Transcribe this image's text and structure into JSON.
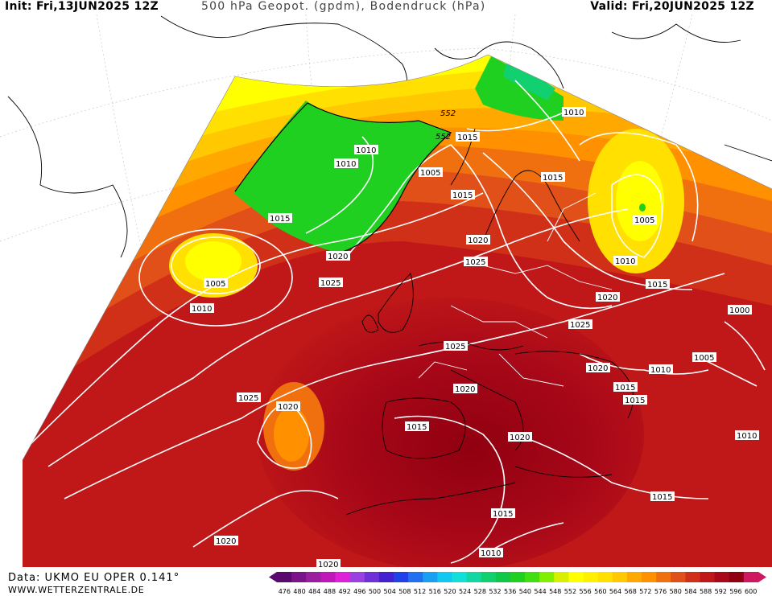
{
  "header": {
    "init": "Init: Fri,13JUN2025 12Z",
    "title": "500 hPa Geopot. (gpdm), Bodendruck (hPa)",
    "valid": "Valid: Fri,20JUN2025 12Z"
  },
  "footer": {
    "data_source": "Data: UKMO EU OPER 0.141°",
    "website": "WWW.WETTERZENTRALE.DE"
  },
  "isobar_labels": [
    "1010",
    "552",
    "552",
    "1015",
    "1010",
    "1010",
    "1005",
    "1015",
    "1015",
    "1015",
    "1005",
    "1020",
    "1020",
    "1025",
    "1010",
    "1005",
    "1010",
    "1025",
    "1020",
    "1015",
    "1025",
    "1000",
    "1025",
    "1005",
    "1010",
    "1020",
    "1015",
    "1015",
    "1020",
    "1020",
    "1025",
    "1015",
    "1020",
    "1010",
    "1015",
    "1015",
    "1020",
    "1010",
    "1020"
  ],
  "color_scale": {
    "ticks": [
      "476",
      "480",
      "484",
      "488",
      "492",
      "496",
      "500",
      "504",
      "508",
      "512",
      "516",
      "520",
      "524",
      "528",
      "532",
      "536",
      "540",
      "544",
      "548",
      "552",
      "556",
      "560",
      "564",
      "568",
      "572",
      "576",
      "580",
      "584",
      "588",
      "592",
      "596",
      "600"
    ],
    "colors": [
      "#5a0a6e",
      "#7a1488",
      "#9c1ea0",
      "#c018b8",
      "#e020d8",
      "#9a40e0",
      "#7030d8",
      "#4420d0",
      "#2040e8",
      "#2070f0",
      "#1aa0f0",
      "#10c8f0",
      "#10e0d8",
      "#10d8a0",
      "#10d070",
      "#10c848",
      "#20d020",
      "#40e010",
      "#80f000",
      "#d8f000",
      "#ffff00",
      "#fff000",
      "#ffe000",
      "#ffc800",
      "#ffa800",
      "#ff9000",
      "#f07010",
      "#e05018",
      "#d03018",
      "#c01818",
      "#a80818",
      "#900010",
      "#d01860"
    ]
  }
}
